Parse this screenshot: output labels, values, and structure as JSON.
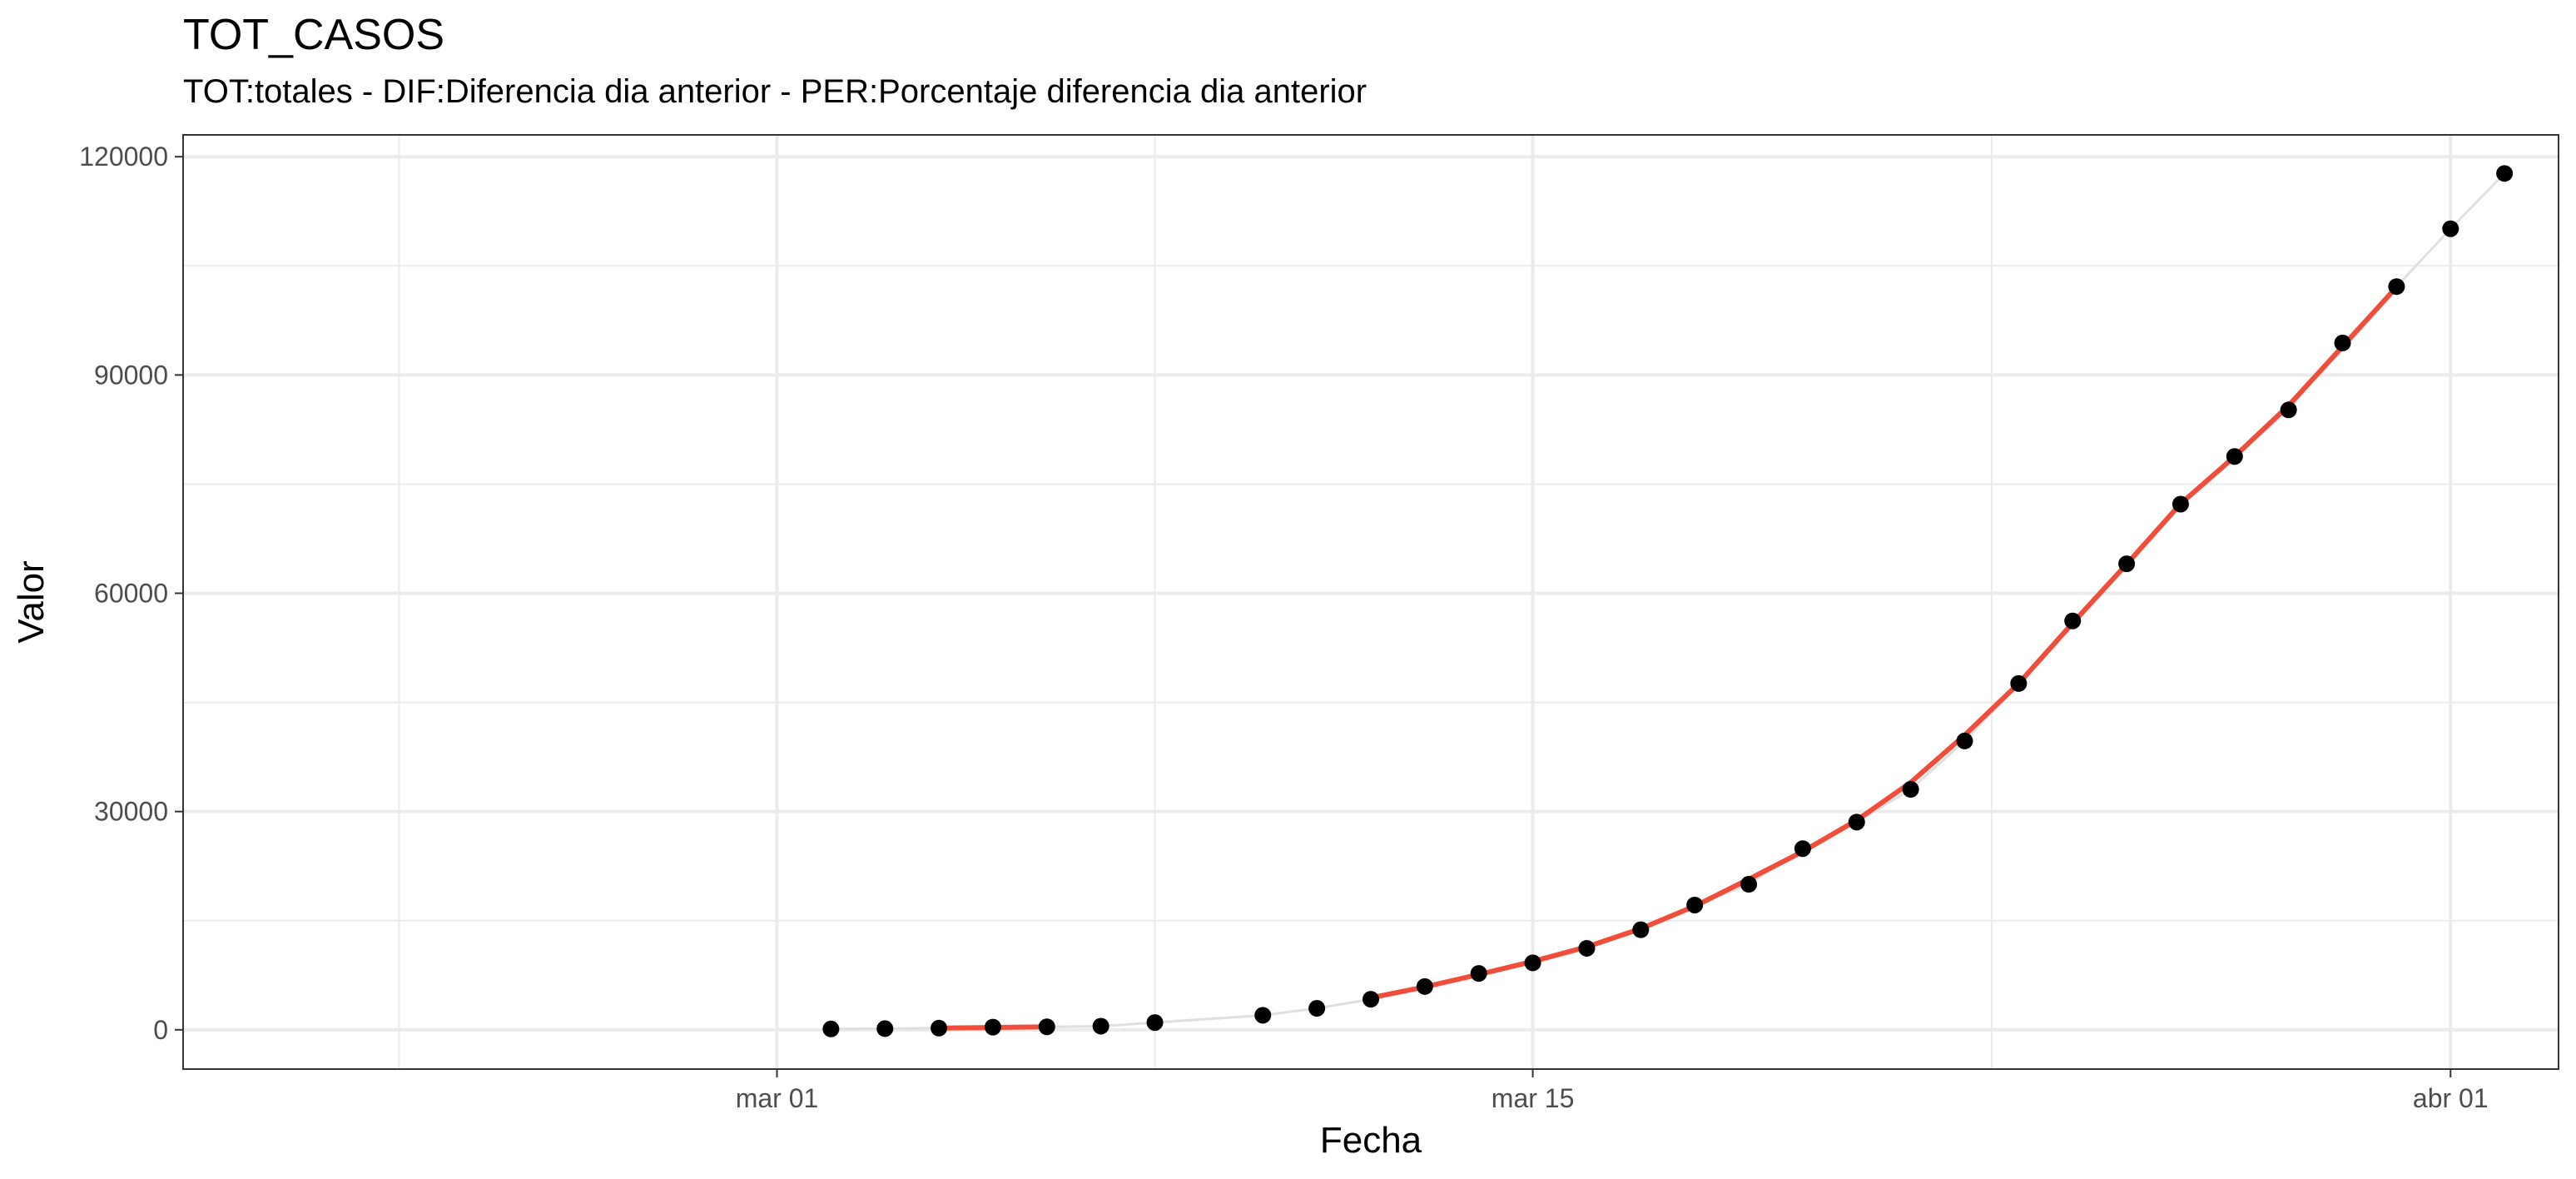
{
  "chart_data": {
    "type": "line",
    "title": "TOT_CASOS",
    "subtitle": "TOT:totales - DIF:Diferencia dia anterior - PER:Porcentaje diferencia dia anterior",
    "xlabel": "Fecha",
    "ylabel": "Valor",
    "x_tick_labels": [
      "mar 01",
      "mar 15",
      "abr 01"
    ],
    "x_tick_values": [
      "2020-03-01",
      "2020-03-15",
      "2020-04-01"
    ],
    "y_tick_labels": [
      "0",
      "30000",
      "60000",
      "90000",
      "120000"
    ],
    "y_tick_values": [
      0,
      30000,
      60000,
      90000,
      120000
    ],
    "xlim": [
      "2020-02-19",
      "2020-04-03"
    ],
    "ylim": [
      -5400,
      123000
    ],
    "grid": true,
    "colors": {
      "points": "#000000",
      "connector_line": "#e0e0e0",
      "fit_line": "#f04e3a",
      "grid": "#ebebeb",
      "panel_border": "#333333"
    },
    "series": [
      {
        "type": "scatter",
        "x": [
          "2020-03-02",
          "2020-03-03",
          "2020-03-04",
          "2020-03-05",
          "2020-03-06",
          "2020-03-07",
          "2020-03-08",
          "2020-03-10",
          "2020-03-11",
          "2020-03-12",
          "2020-03-13",
          "2020-03-14",
          "2020-03-15",
          "2020-03-16",
          "2020-03-17",
          "2020-03-18",
          "2020-03-19",
          "2020-03-20",
          "2020-03-21",
          "2020-03-22",
          "2020-03-23",
          "2020-03-24",
          "2020-03-25",
          "2020-03-26",
          "2020-03-27",
          "2020-03-28",
          "2020-03-29",
          "2020-03-30",
          "2020-03-31",
          "2020-04-01",
          "2020-04-02"
        ],
        "values": [
          120,
          160,
          230,
          370,
          410,
          500,
          1000,
          2000,
          2950,
          4200,
          5950,
          7750,
          9200,
          11200,
          13750,
          17150,
          20000,
          24900,
          28550,
          33050,
          39700,
          47600,
          56200,
          64050,
          72250,
          78800,
          85200,
          94400,
          102150,
          110100,
          117700
        ]
      },
      {
        "type": "line",
        "x": [
          "2020-03-04",
          "2020-03-06"
        ],
        "values": [
          230,
          410
        ]
      },
      {
        "type": "line",
        "x": [
          "2020-03-12",
          "2020-03-13",
          "2020-03-14",
          "2020-03-15",
          "2020-03-16",
          "2020-03-17",
          "2020-03-18",
          "2020-03-19",
          "2020-03-20",
          "2020-03-21",
          "2020-03-22",
          "2020-03-23",
          "2020-03-24",
          "2020-03-25",
          "2020-03-26",
          "2020-03-27",
          "2020-03-28",
          "2020-03-29",
          "2020-03-30",
          "2020-03-31"
        ],
        "values": [
          4400,
          5900,
          7600,
          9400,
          11400,
          13900,
          17000,
          20700,
          24500,
          28800,
          34000,
          40500,
          47600,
          55900,
          64000,
          72300,
          78800,
          85800,
          93900,
          102100
        ]
      }
    ]
  }
}
